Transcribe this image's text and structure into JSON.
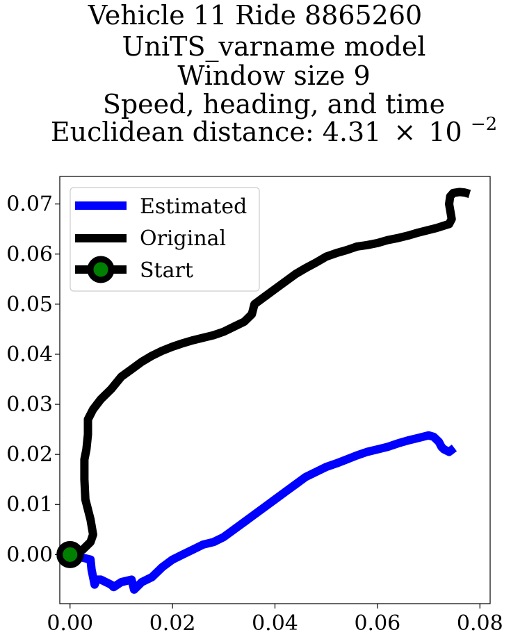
{
  "chart_data": {
    "type": "line",
    "title_lines": [
      "Vehicle 11 Ride 8865260",
      "UniTS_varname model",
      "Window size 9",
      "Speed, heading, and time"
    ],
    "title_distance_prefix": "Euclidean distance: 4.31",
    "title_distance_times": "×",
    "title_distance_base": "10",
    "title_distance_exponent": "−2",
    "xlabel": "",
    "ylabel": "",
    "xlim": [
      -0.002,
      0.082
    ],
    "ylim": [
      -0.0098,
      0.0755
    ],
    "x_ticks": [
      0.0,
      0.02,
      0.04,
      0.06,
      0.08
    ],
    "x_tick_labels": [
      "0.00",
      "0.02",
      "0.04",
      "0.06",
      "0.08"
    ],
    "y_ticks": [
      0.0,
      0.01,
      0.02,
      0.03,
      0.04,
      0.05,
      0.06,
      0.07
    ],
    "y_tick_labels": [
      "0.00",
      "0.01",
      "0.02",
      "0.03",
      "0.04",
      "0.05",
      "0.06",
      "0.07"
    ],
    "grid": false,
    "legend": {
      "position": "top-left",
      "entries": [
        "Estimated",
        "Original",
        "Start"
      ]
    },
    "series": [
      {
        "name": "Estimated",
        "color": "#0000ff",
        "x": [
          0.0,
          0.002,
          0.004,
          0.0042,
          0.0045,
          0.0048,
          0.0052,
          0.006,
          0.008,
          0.0085,
          0.01,
          0.012,
          0.0125,
          0.014,
          0.016,
          0.018,
          0.02,
          0.022,
          0.024,
          0.026,
          0.028,
          0.03,
          0.032,
          0.034,
          0.036,
          0.038,
          0.04,
          0.042,
          0.044,
          0.046,
          0.048,
          0.05,
          0.052,
          0.054,
          0.056,
          0.058,
          0.06,
          0.062,
          0.064,
          0.066,
          0.068,
          0.07,
          0.071,
          0.072,
          0.0725,
          0.073,
          0.074,
          0.075
        ],
        "y": [
          0.0,
          -0.0005,
          -0.001,
          -0.003,
          -0.0045,
          -0.006,
          -0.005,
          -0.005,
          -0.006,
          -0.0065,
          -0.0055,
          -0.005,
          -0.007,
          -0.0055,
          -0.0045,
          -0.0025,
          -0.001,
          0.0,
          0.001,
          0.002,
          0.0025,
          0.0035,
          0.005,
          0.0065,
          0.008,
          0.0095,
          0.011,
          0.0125,
          0.014,
          0.0155,
          0.0165,
          0.0175,
          0.0182,
          0.019,
          0.0198,
          0.0205,
          0.021,
          0.0215,
          0.0222,
          0.0228,
          0.0233,
          0.0238,
          0.0235,
          0.0225,
          0.0215,
          0.021,
          0.0205,
          0.0213
        ]
      },
      {
        "name": "Original",
        "color": "#000000",
        "x": [
          0.0,
          0.0025,
          0.004,
          0.0045,
          0.004,
          0.003,
          0.0028,
          0.0028,
          0.0032,
          0.0035,
          0.0035,
          0.0045,
          0.006,
          0.008,
          0.01,
          0.012,
          0.014,
          0.016,
          0.018,
          0.02,
          0.022,
          0.024,
          0.026,
          0.028,
          0.03,
          0.032,
          0.034,
          0.0355,
          0.036,
          0.038,
          0.04,
          0.042,
          0.044,
          0.046,
          0.048,
          0.05,
          0.052,
          0.054,
          0.056,
          0.058,
          0.06,
          0.062,
          0.064,
          0.066,
          0.068,
          0.07,
          0.0715,
          0.074,
          0.0745,
          0.074,
          0.0742,
          0.0748,
          0.076,
          0.077,
          0.078
        ],
        "y": [
          0.0,
          0.001,
          0.0025,
          0.004,
          0.007,
          0.011,
          0.015,
          0.019,
          0.021,
          0.024,
          0.027,
          0.029,
          0.031,
          0.033,
          0.0355,
          0.037,
          0.0385,
          0.0397,
          0.0407,
          0.0415,
          0.0422,
          0.0428,
          0.0433,
          0.0438,
          0.0445,
          0.0455,
          0.0465,
          0.048,
          0.05,
          0.0515,
          0.053,
          0.0545,
          0.056,
          0.0572,
          0.0583,
          0.0595,
          0.0602,
          0.0608,
          0.0615,
          0.0618,
          0.0622,
          0.0628,
          0.0632,
          0.0637,
          0.0643,
          0.0648,
          0.0652,
          0.066,
          0.067,
          0.07,
          0.0715,
          0.0722,
          0.0724,
          0.0723,
          0.072
        ]
      }
    ],
    "start_point": {
      "name": "Start",
      "x": 0.0,
      "y": 0.0,
      "edge_color": "#000000",
      "face_color": "#008000"
    }
  }
}
